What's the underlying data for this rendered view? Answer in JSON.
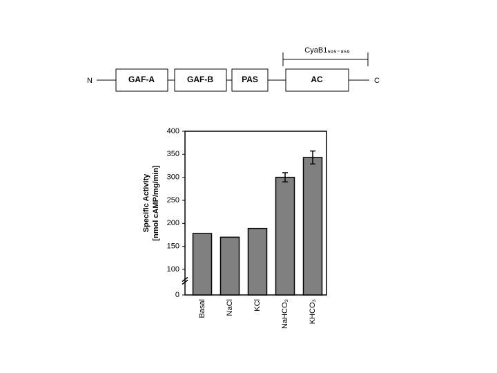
{
  "diagram": {
    "n_label": "N",
    "c_label": "C",
    "domains": [
      "GAF-A",
      "GAF-B",
      "PAS",
      "AC"
    ],
    "construct_label": "CyaB1₅₉₅₋₈₅₉"
  },
  "chart_data": {
    "type": "bar",
    "y_label": [
      "Specific Activity",
      "[nmol cAMP/mg/min]"
    ],
    "categories": [
      "Basal",
      "NaCl",
      "KCl",
      "NaHCO₃",
      "KHCO₃"
    ],
    "values": [
      178,
      170,
      189,
      300,
      343
    ],
    "errors": [
      null,
      null,
      null,
      10,
      14
    ],
    "color": "#808080",
    "ylim": [
      0,
      400
    ],
    "yticks": [
      0,
      100,
      150,
      200,
      250,
      300,
      350,
      400
    ],
    "axis_break": true
  }
}
